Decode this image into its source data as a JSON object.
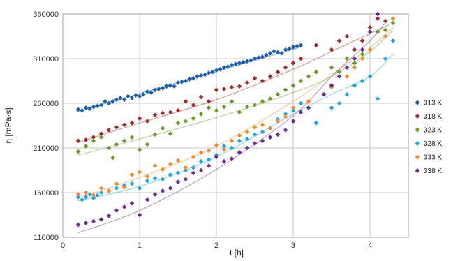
{
  "chart_data": {
    "type": "scatter",
    "xlabel": "t [h]",
    "ylabel": "η [mPa·s]",
    "xlim": [
      0,
      4.5
    ],
    "ylim": [
      110000,
      360000
    ],
    "x_ticks": [
      0,
      1,
      2,
      3,
      4
    ],
    "y_ticks": [
      110000,
      160000,
      210000,
      260000,
      310000,
      360000
    ],
    "grid": true,
    "legend_position": "right",
    "series": [
      {
        "name": "313 K",
        "color": "#1f5fa8",
        "marker": "diamond",
        "x": [
          0.2,
          0.25,
          0.3,
          0.35,
          0.4,
          0.45,
          0.5,
          0.55,
          0.6,
          0.65,
          0.7,
          0.75,
          0.8,
          0.85,
          0.9,
          0.95,
          1.0,
          1.05,
          1.1,
          1.15,
          1.2,
          1.25,
          1.3,
          1.35,
          1.4,
          1.45,
          1.5,
          1.55,
          1.6,
          1.65,
          1.7,
          1.75,
          1.8,
          1.85,
          1.9,
          1.95,
          2.0,
          2.05,
          2.1,
          2.15,
          2.2,
          2.25,
          2.3,
          2.35,
          2.4,
          2.45,
          2.5,
          2.55,
          2.6,
          2.65,
          2.7,
          2.75,
          2.8,
          2.85,
          2.9,
          2.95,
          3.0,
          3.05,
          3.1
        ],
        "y": [
          253000,
          252000,
          255000,
          254000,
          256000,
          257000,
          258000,
          262000,
          260000,
          262000,
          264000,
          266000,
          264000,
          268000,
          266000,
          269000,
          268000,
          270000,
          273000,
          272000,
          275000,
          276000,
          277000,
          279000,
          280000,
          279000,
          283000,
          284000,
          285000,
          287000,
          288000,
          290000,
          291000,
          292000,
          294000,
          295000,
          297000,
          298000,
          300000,
          301000,
          303000,
          304000,
          305000,
          306000,
          307000,
          308000,
          310000,
          311000,
          312000,
          314000,
          316000,
          318000,
          317000,
          316000,
          320000,
          321000,
          323000,
          324000,
          325000
        ],
        "trend": [
          [
            0.2,
            251000
          ],
          [
            3.1,
            323000
          ]
        ]
      },
      {
        "name": "318 K",
        "color": "#a52a2a",
        "marker": "diamond",
        "x": [
          0.2,
          0.3,
          0.4,
          0.5,
          0.6,
          0.7,
          0.8,
          0.9,
          1.0,
          1.1,
          1.2,
          1.3,
          1.4,
          1.5,
          1.6,
          1.7,
          1.8,
          1.9,
          2.0,
          2.1,
          2.2,
          2.3,
          2.4,
          2.5,
          2.6,
          2.7,
          2.8,
          2.9,
          3.0,
          3.1,
          3.3,
          3.5,
          3.6,
          3.7,
          3.8,
          3.9,
          4.0,
          4.1,
          4.2
        ],
        "y": [
          218000,
          219000,
          222000,
          226000,
          230000,
          233000,
          236000,
          238000,
          243000,
          240000,
          247000,
          249000,
          250000,
          252000,
          262000,
          258000,
          267000,
          262000,
          275000,
          276000,
          278000,
          279000,
          283000,
          288000,
          285000,
          290000,
          295000,
          300000,
          305000,
          310000,
          325000,
          320000,
          330000,
          335000,
          320000,
          330000,
          345000,
          355000,
          352000
        ],
        "trend": [
          [
            0.2,
            216000
          ],
          [
            1,
            238000
          ],
          [
            2,
            264000
          ],
          [
            3,
            298000
          ],
          [
            3.5,
            318000
          ],
          [
            4,
            338000
          ],
          [
            4.25,
            348000
          ]
        ]
      },
      {
        "name": "323 K",
        "color": "#6a9c2a",
        "marker": "diamond",
        "x": [
          0.2,
          0.3,
          0.4,
          0.5,
          0.6,
          0.65,
          0.7,
          0.8,
          0.9,
          1.0,
          1.1,
          1.2,
          1.3,
          1.4,
          1.5,
          1.6,
          1.7,
          1.8,
          1.9,
          2.0,
          2.1,
          2.2,
          2.3,
          2.4,
          2.5,
          2.6,
          2.7,
          2.8,
          2.9,
          3.0,
          3.1,
          3.2,
          3.3,
          3.5,
          3.6,
          3.7,
          3.8,
          3.9,
          4.0,
          4.1,
          4.2,
          4.3
        ],
        "y": [
          206000,
          212000,
          218000,
          222000,
          210000,
          199000,
          214000,
          218000,
          222000,
          208000,
          214000,
          225000,
          232000,
          226000,
          238000,
          240000,
          243000,
          248000,
          255000,
          252000,
          256000,
          262000,
          250000,
          256000,
          258000,
          262000,
          265000,
          270000,
          275000,
          280000,
          285000,
          290000,
          295000,
          300000,
          295000,
          310000,
          305000,
          315000,
          320000,
          340000,
          342000,
          350000
        ],
        "trend": [
          [
            0.2,
            202000
          ],
          [
            1,
            220000
          ],
          [
            2,
            244000
          ],
          [
            3,
            272000
          ],
          [
            3.5,
            290000
          ],
          [
            4,
            318000
          ],
          [
            4.3,
            342000
          ]
        ]
      },
      {
        "name": "328 K",
        "color": "#1fa6de",
        "marker": "diamond",
        "x": [
          0.2,
          0.25,
          0.3,
          0.35,
          0.4,
          0.45,
          0.5,
          0.6,
          0.7,
          0.8,
          0.9,
          1.0,
          1.1,
          1.2,
          1.3,
          1.4,
          1.5,
          1.6,
          1.7,
          1.8,
          1.9,
          2.0,
          2.1,
          2.2,
          2.3,
          2.4,
          2.5,
          2.6,
          2.7,
          2.8,
          2.9,
          3.0,
          3.1,
          3.3,
          3.5,
          3.6,
          3.7,
          3.8,
          3.9,
          4.0,
          4.1,
          4.2,
          4.3
        ],
        "y": [
          155000,
          152000,
          155000,
          158000,
          154000,
          157000,
          160000,
          162000,
          165000,
          168000,
          170000,
          165000,
          173000,
          176000,
          175000,
          180000,
          182000,
          185000,
          188000,
          195000,
          197000,
          202000,
          212000,
          210000,
          218000,
          220000,
          225000,
          228000,
          232000,
          242000,
          248000,
          252000,
          260000,
          238000,
          255000,
          260000,
          270000,
          280000,
          285000,
          290000,
          265000,
          310000,
          330000
        ],
        "trend": [
          [
            0.2,
            151000
          ],
          [
            1,
            167000
          ],
          [
            2,
            200000
          ],
          [
            3,
            248000
          ],
          [
            3.5,
            270000
          ],
          [
            4,
            290000
          ],
          [
            4.3,
            315000
          ]
        ]
      },
      {
        "name": "333 K",
        "color": "#f28a2e",
        "marker": "diamond",
        "x": [
          0.2,
          0.3,
          0.4,
          0.5,
          0.6,
          0.7,
          0.8,
          0.9,
          1.0,
          1.1,
          1.2,
          1.3,
          1.4,
          1.5,
          1.6,
          1.7,
          1.8,
          1.9,
          2.0,
          2.1,
          2.2,
          2.3,
          2.4,
          2.5,
          2.6,
          2.7,
          2.8,
          2.9,
          3.0,
          3.2,
          3.4,
          3.5,
          3.7,
          3.8,
          3.9,
          4.0,
          4.2,
          4.3
        ],
        "y": [
          158000,
          160000,
          157000,
          165000,
          162000,
          170000,
          166000,
          180000,
          183000,
          178000,
          190000,
          186000,
          192000,
          196000,
          188000,
          200000,
          205000,
          207000,
          213000,
          208000,
          218000,
          224000,
          228000,
          233000,
          236000,
          232000,
          240000,
          245000,
          255000,
          262000,
          270000,
          278000,
          290000,
          300000,
          310000,
          320000,
          335000,
          355000
        ],
        "trend": [
          [
            0.2,
            154000
          ],
          [
            1,
            177000
          ],
          [
            2,
            212000
          ],
          [
            3,
            262000
          ],
          [
            3.5,
            292000
          ],
          [
            4,
            322000
          ],
          [
            4.3,
            345000
          ]
        ]
      },
      {
        "name": "338 K",
        "color": "#6b2c91",
        "marker": "diamond",
        "x": [
          0.2,
          0.3,
          0.4,
          0.5,
          0.6,
          0.7,
          0.8,
          0.9,
          1.0,
          1.1,
          1.2,
          1.3,
          1.4,
          1.5,
          1.6,
          1.7,
          1.8,
          1.9,
          2.0,
          2.1,
          2.2,
          2.3,
          2.4,
          2.5,
          2.6,
          2.7,
          2.8,
          2.9,
          3.0,
          3.1,
          3.2,
          3.4,
          3.5,
          3.6,
          3.7,
          3.8,
          3.9,
          4.0,
          4.1
        ],
        "y": [
          124000,
          126000,
          128000,
          130000,
          134000,
          140000,
          144000,
          148000,
          135000,
          152000,
          158000,
          162000,
          165000,
          172000,
          175000,
          182000,
          185000,
          190000,
          200000,
          195000,
          198000,
          205000,
          210000,
          215000,
          218000,
          222000,
          225000,
          230000,
          240000,
          250000,
          255000,
          270000,
          280000,
          290000,
          300000,
          310000,
          320000,
          340000,
          360000
        ],
        "trend": [
          [
            0.2,
            115000
          ],
          [
            1,
            140000
          ],
          [
            2,
            186000
          ],
          [
            3,
            246000
          ],
          [
            3.5,
            290000
          ],
          [
            4,
            330000
          ],
          [
            4.2,
            350000
          ]
        ]
      }
    ]
  }
}
